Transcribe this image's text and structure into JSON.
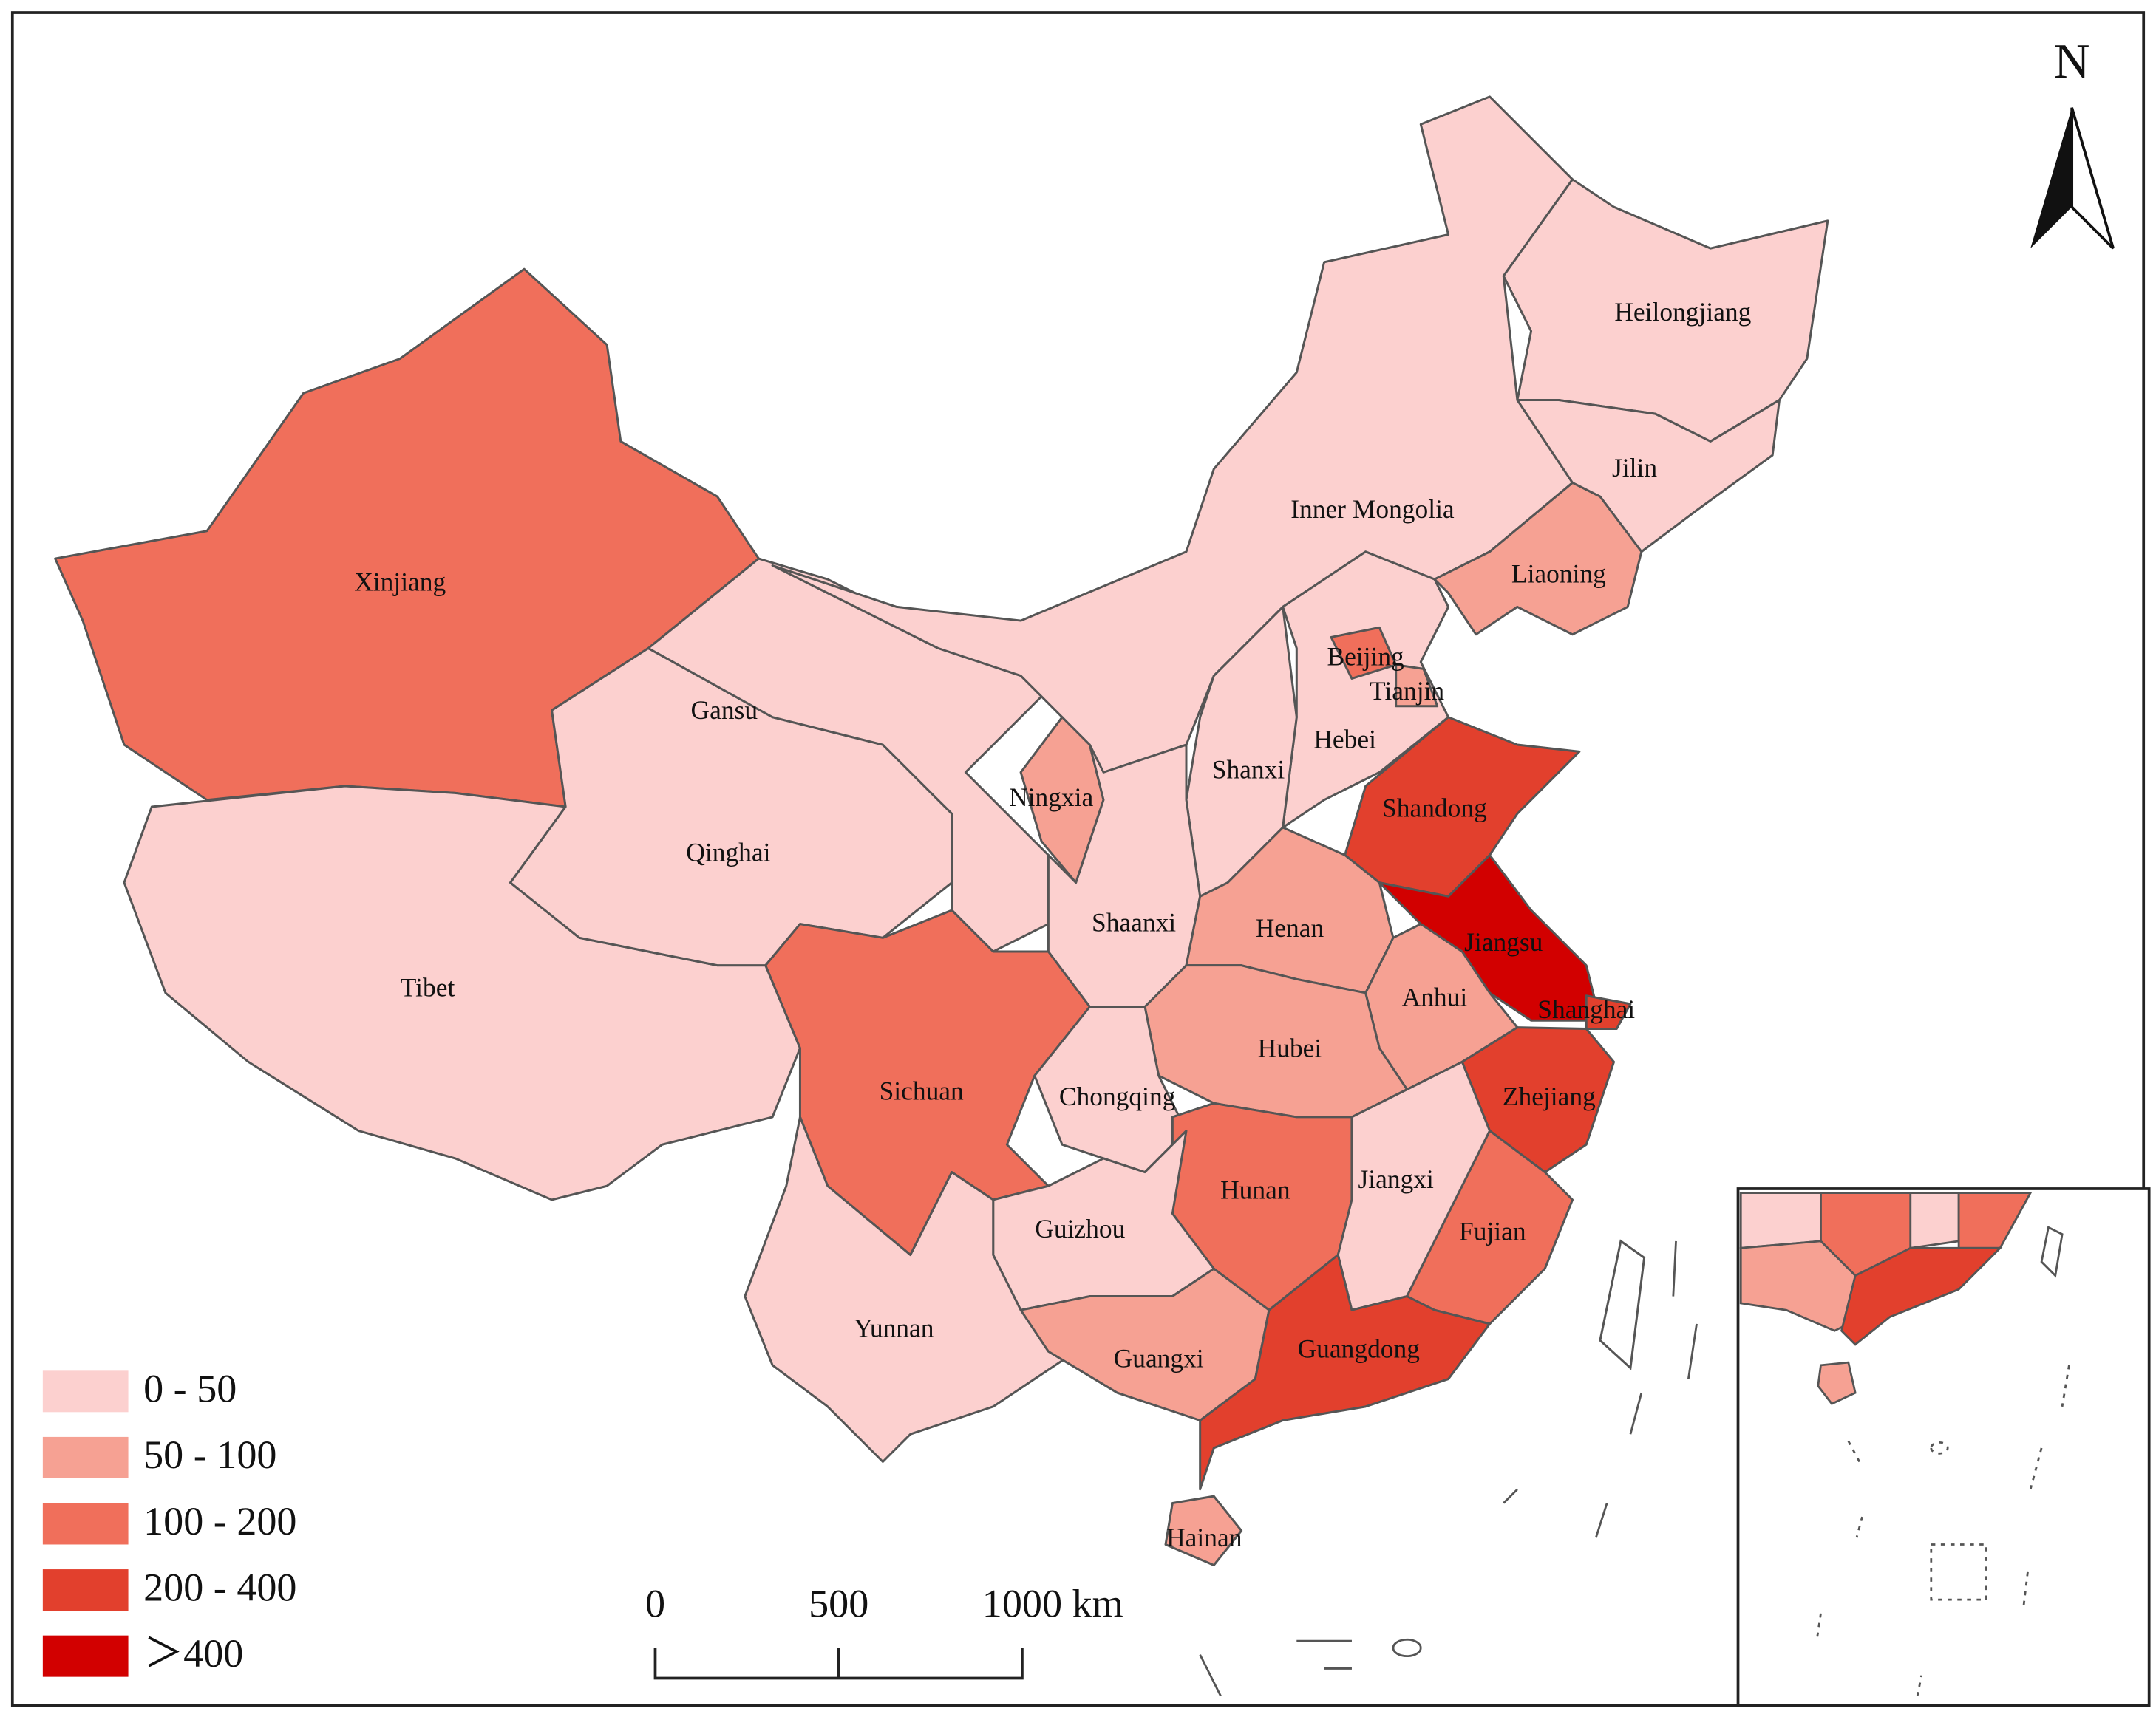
{
  "north": "N",
  "scale_bar": [
    "0",
    "500",
    "1000 km"
  ],
  "legend": [
    {
      "label": "0 - 50",
      "color": "#fcd0cf"
    },
    {
      "label": "50 - 100",
      "color": "#f6a193"
    },
    {
      "label": "100 - 200",
      "color": "#f06f5b"
    },
    {
      "label": "200 - 400",
      "color": "#e2402d"
    },
    {
      "label": "＞400",
      "color": "#d20000"
    }
  ],
  "provinces": [
    {
      "name": "Xinjiang",
      "color": "#f06f5b"
    },
    {
      "name": "Tibet",
      "color": "#fcd0cf"
    },
    {
      "name": "Qinghai",
      "color": "#fcd0cf"
    },
    {
      "name": "Gansu",
      "color": "#fcd0cf"
    },
    {
      "name": "Inner Mongolia",
      "color": "#fcd0cf"
    },
    {
      "name": "Heilongjiang",
      "color": "#fcd0cf"
    },
    {
      "name": "Jilin",
      "color": "#fcd0cf"
    },
    {
      "name": "Liaoning",
      "color": "#f6a193"
    },
    {
      "name": "Hebei",
      "color": "#fcd0cf"
    },
    {
      "name": "Beijing",
      "color": "#f06f5b"
    },
    {
      "name": "Tianjin",
      "color": "#f6a193"
    },
    {
      "name": "Shanxi",
      "color": "#fcd0cf"
    },
    {
      "name": "Shandong",
      "color": "#e2402d"
    },
    {
      "name": "Ningxia",
      "color": "#f6a193"
    },
    {
      "name": "Shaanxi",
      "color": "#fcd0cf"
    },
    {
      "name": "Henan",
      "color": "#f6a193"
    },
    {
      "name": "Jiangsu",
      "color": "#d20000"
    },
    {
      "name": "Shanghai",
      "color": "#e2402d"
    },
    {
      "name": "Anhui",
      "color": "#f6a193"
    },
    {
      "name": "Hubei",
      "color": "#f6a193"
    },
    {
      "name": "Zhejiang",
      "color": "#e2402d"
    },
    {
      "name": "Chongqing",
      "color": "#fcd0cf"
    },
    {
      "name": "Sichuan",
      "color": "#f06f5b"
    },
    {
      "name": "Hunan",
      "color": "#f06f5b"
    },
    {
      "name": "Jiangxi",
      "color": "#fcd0cf"
    },
    {
      "name": "Fujian",
      "color": "#f06f5b"
    },
    {
      "name": "Guizhou",
      "color": "#fcd0cf"
    },
    {
      "name": "Yunnan",
      "color": "#fcd0cf"
    },
    {
      "name": "Guangxi",
      "color": "#f6a193"
    },
    {
      "name": "Guangdong",
      "color": "#e2402d"
    },
    {
      "name": "Hainan",
      "color": "#f6a193"
    }
  ]
}
